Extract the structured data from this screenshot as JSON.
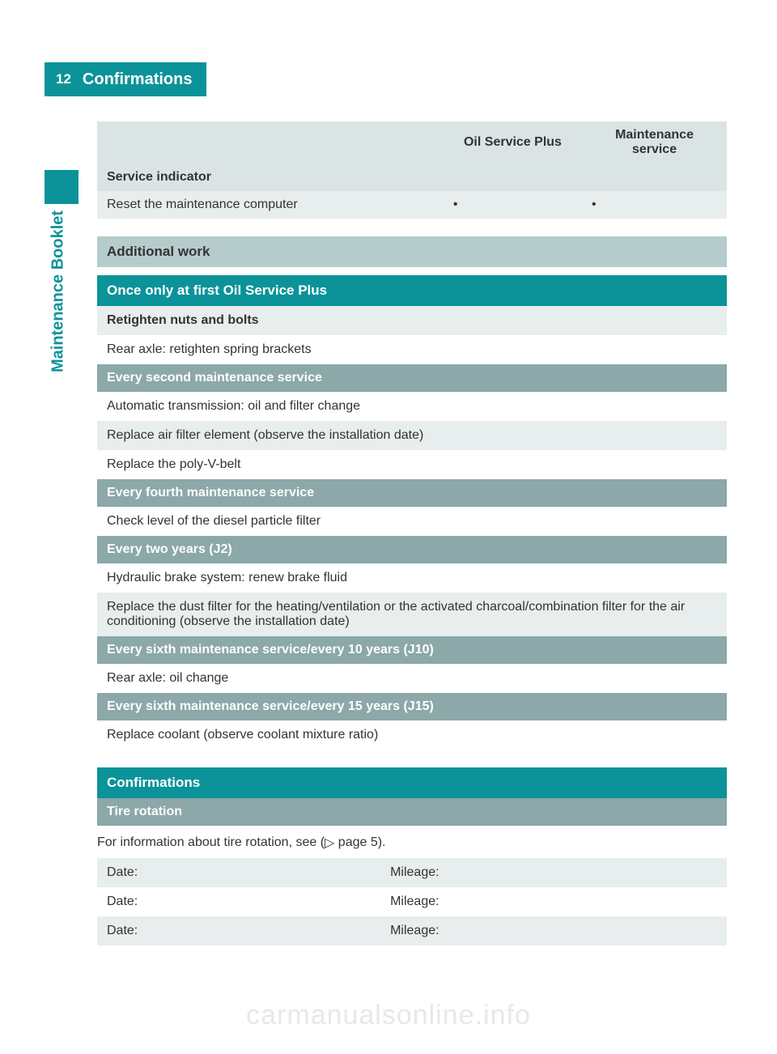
{
  "page": {
    "number": "12",
    "title": "Confirmations",
    "side_label": "Maintenance Booklet"
  },
  "table1": {
    "col_oil": "Oil Service Plus",
    "col_maint": "Maintenance service",
    "row_service_indicator": "Service indicator",
    "row_reset": "Reset the maintenance computer",
    "dot": "•"
  },
  "additional": {
    "header": "Additional work",
    "groups": [
      {
        "type": "teal",
        "text": "Once only at first Oil Service Plus"
      },
      {
        "type": "rowb_bold",
        "text": "Retighten nuts and bolts"
      },
      {
        "type": "rowa",
        "text": "Rear axle: retighten spring brackets"
      },
      {
        "type": "gray",
        "text": "Every second maintenance service"
      },
      {
        "type": "rowa",
        "text": "Automatic transmission: oil and filter change"
      },
      {
        "type": "rowb",
        "text": "Replace air filter element (observe the installation date)"
      },
      {
        "type": "rowa",
        "text": "Replace the poly-V-belt"
      },
      {
        "type": "gray",
        "text": "Every fourth maintenance service"
      },
      {
        "type": "rowa",
        "text": "Check level of the diesel particle filter"
      },
      {
        "type": "gray",
        "text": "Every two years (J2)"
      },
      {
        "type": "rowa",
        "text": "Hydraulic brake system: renew brake fluid"
      },
      {
        "type": "rowb",
        "text": "Replace the dust filter for the heating/ventilation or the activated charcoal/combination filter for the air conditioning (observe the installation date)"
      },
      {
        "type": "gray",
        "text": "Every sixth maintenance service/every 10 years (J10)"
      },
      {
        "type": "rowa",
        "text": "Rear axle: oil change"
      },
      {
        "type": "gray",
        "text": "Every sixth maintenance service/every 15 years (J15)"
      },
      {
        "type": "rowa",
        "text": "Replace coolant (observe coolant mixture ratio)"
      }
    ]
  },
  "confirm": {
    "header": "Confirmations",
    "sub": "Tire rotation",
    "info_pre": "For information about tire rotation, see (",
    "info_icon": "▷",
    "info_post": " page 5).",
    "rows": [
      {
        "d": "Date:",
        "m": "Mileage:"
      },
      {
        "d": "Date:",
        "m": "Mileage:"
      },
      {
        "d": "Date:",
        "m": "Mileage:"
      }
    ]
  },
  "watermark": "carmanualsonline.info"
}
